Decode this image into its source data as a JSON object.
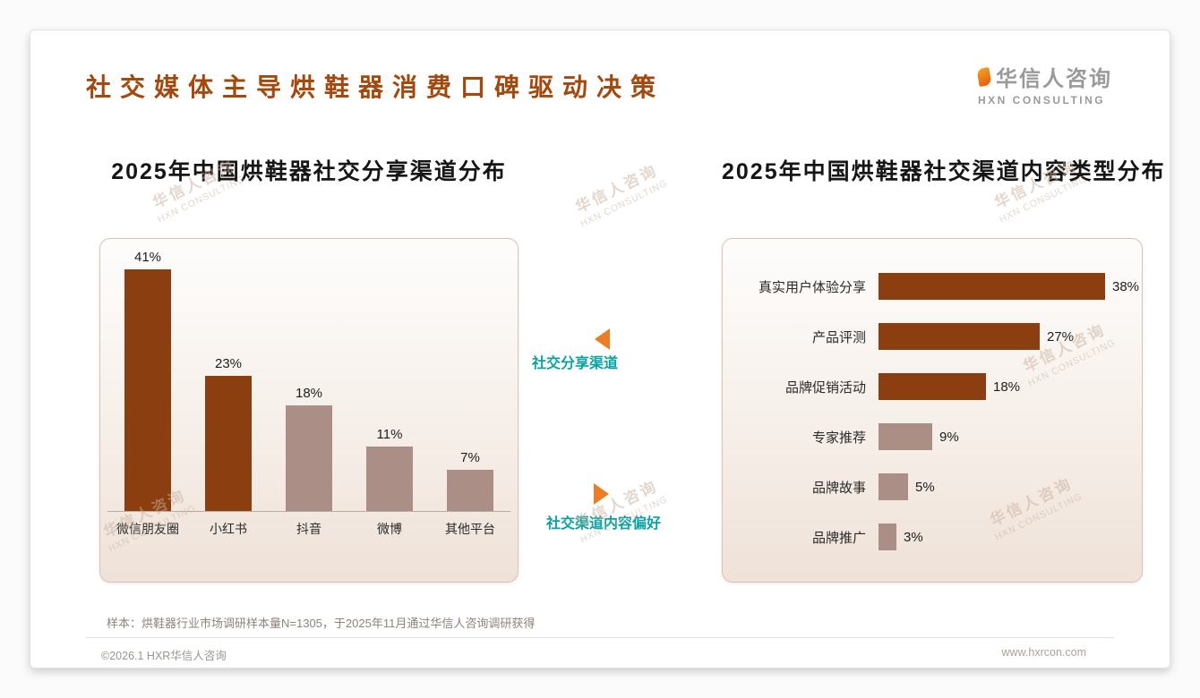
{
  "page": {
    "title": "社交媒体主导烘鞋器消费口碑驱动决策",
    "logo": {
      "name": "华信人咨询",
      "sub": "HXN CONSULTING"
    },
    "watermark": {
      "line1": "华信人咨询",
      "line2": "HXN CONSULTING"
    },
    "note": "样本：烘鞋器行业市场调研样本量N=1305，于2025年11月通过华信人咨询调研获得",
    "footer": {
      "left": "©2026.1 HXR华信人咨询",
      "right": "www.hxrcon.com"
    }
  },
  "annotations": {
    "left_chart_label": "社交分享渠道",
    "right_chart_label": "社交渠道内容偏好"
  },
  "colors": {
    "title": "#A3490E",
    "bar_dark": "#8B3E10",
    "bar_light": "#AB8E86",
    "teal_label": "#0AA3A3",
    "arrow_orange": "#ED7D23",
    "logo_gray": "#9A9A9A"
  },
  "chart_data": [
    {
      "type": "bar",
      "orientation": "vertical",
      "title": "2025年中国烘鞋器社交分享渠道分布",
      "categories": [
        "微信朋友圈",
        "小红书",
        "抖音",
        "微博",
        "其他平台"
      ],
      "values": [
        41,
        23,
        18,
        11,
        7
      ],
      "unit": "%",
      "highlight_count": 2,
      "ylim": [
        0,
        45
      ],
      "grid": false,
      "legend": "none"
    },
    {
      "type": "bar",
      "orientation": "horizontal",
      "title": "2025年中国烘鞋器社交渠道内容类型分布",
      "categories": [
        "真实用户体验分享",
        "产品评测",
        "品牌促销活动",
        "专家推荐",
        "品牌故事",
        "品牌推广"
      ],
      "values": [
        38,
        27,
        18,
        9,
        5,
        3
      ],
      "unit": "%",
      "highlight_count": 3,
      "xlim": [
        0,
        40
      ],
      "grid": false,
      "legend": "none"
    }
  ]
}
